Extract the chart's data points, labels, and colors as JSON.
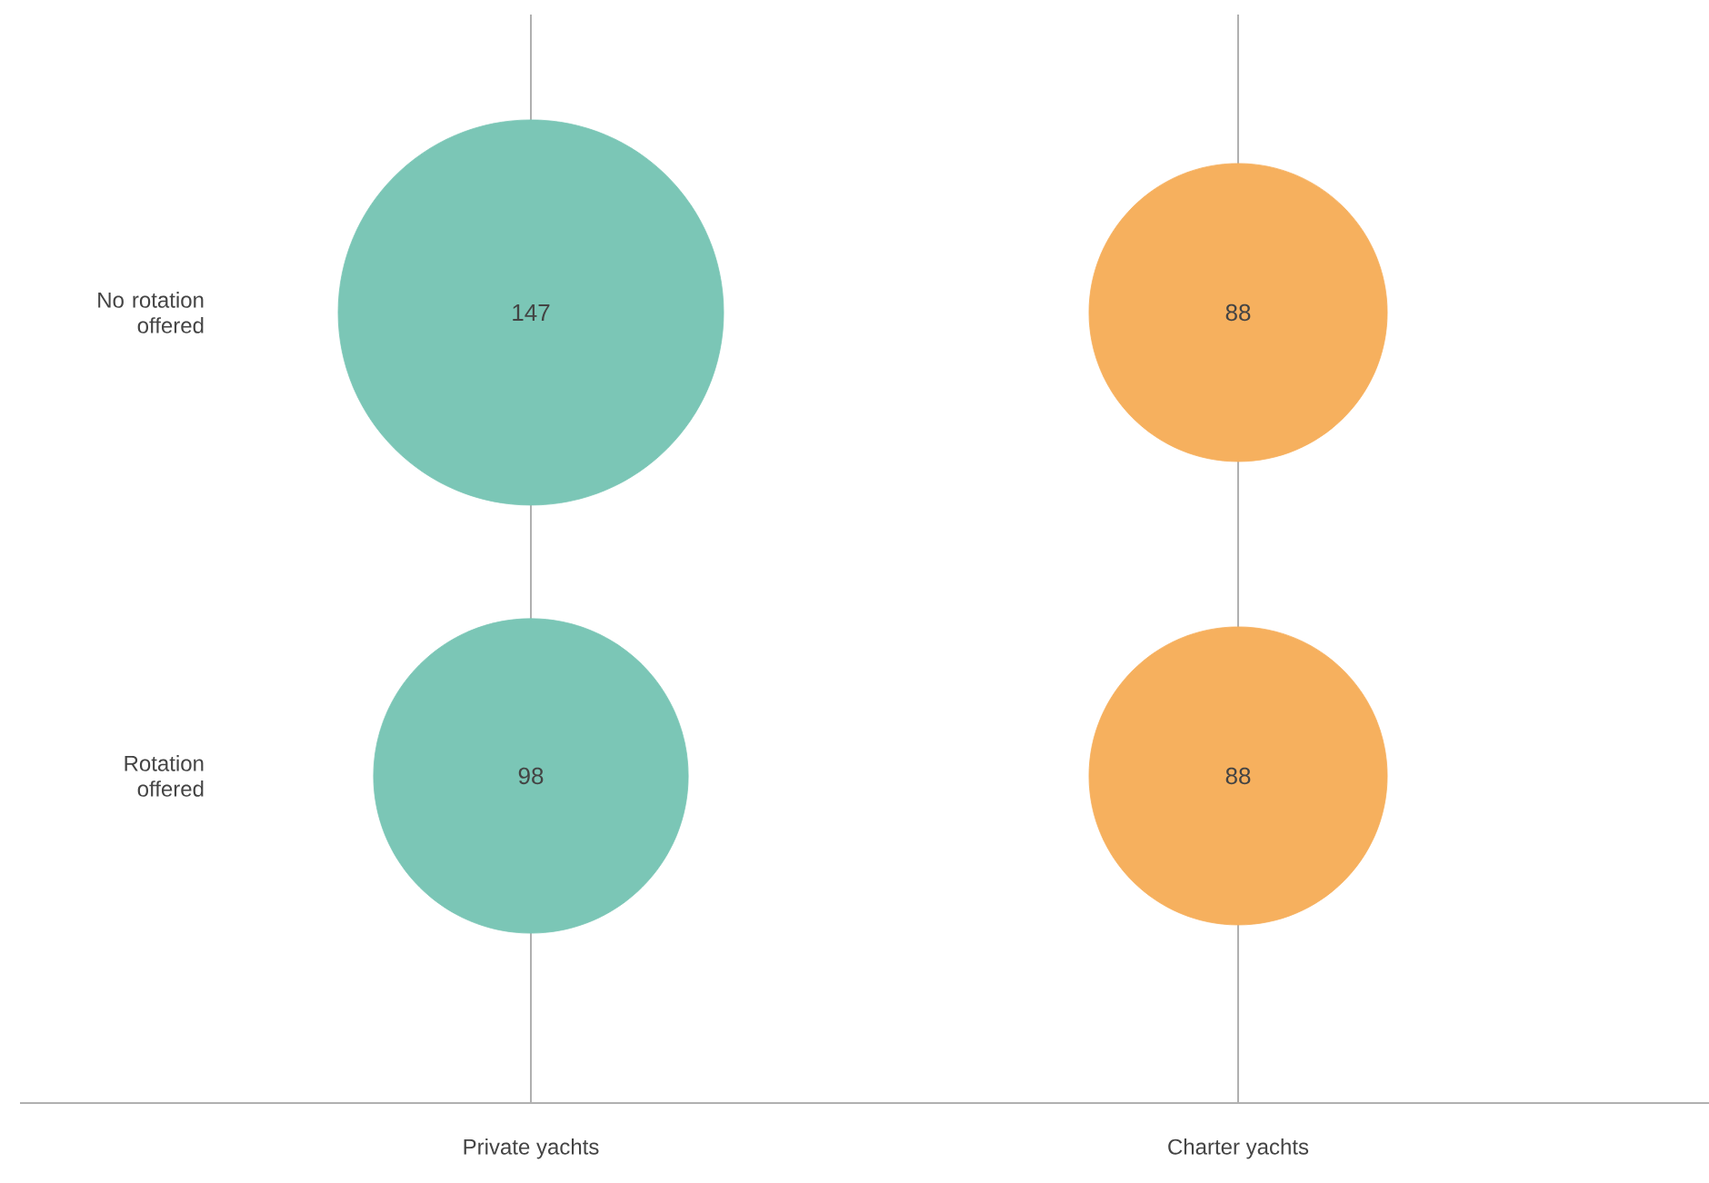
{
  "chart_data": {
    "type": "other",
    "categories": [
      "Private yachts",
      "Charter yachts"
    ],
    "annotations": [
      "No rotation offered",
      "Rotation offered"
    ],
    "series": [
      {
        "values": [
          147,
          88
        ],
        "colors": [
          "#7bc6b6",
          "#f6b05e"
        ]
      },
      {
        "values": [
          98,
          88
        ],
        "colors": [
          "#7bc6b6",
          "#f6b05e"
        ]
      }
    ],
    "data_labels": true
  }
}
